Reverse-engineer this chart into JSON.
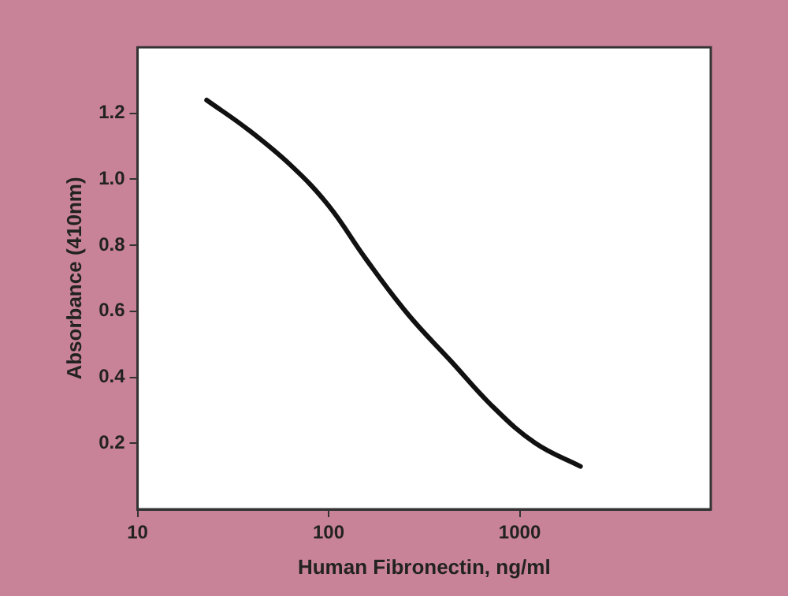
{
  "chart_data": {
    "type": "line",
    "xlabel": "Human Fibronectin, ng/ml",
    "ylabel": "Absorbance (410nm)",
    "log": "x",
    "x": [
      23,
      38,
      64,
      100,
      156,
      261,
      435,
      726,
      1210,
      2080
    ],
    "series": [
      {
        "color": "#111111",
        "values": [
          1.24,
          1.15,
          1.04,
          0.92,
          0.76,
          0.59,
          0.45,
          0.31,
          0.2,
          0.13
        ]
      }
    ],
    "xlim": [
      10,
      10000
    ],
    "xticks": [
      10,
      100,
      1000
    ],
    "ylim": [
      0,
      1.4
    ],
    "yticks": [
      0.2,
      0.4,
      0.6,
      0.8,
      {
        "value": 1,
        "label": "1.0"
      },
      1.2
    ],
    "grid": false,
    "legend": false,
    "marker": "none",
    "line_style": "solid"
  }
}
